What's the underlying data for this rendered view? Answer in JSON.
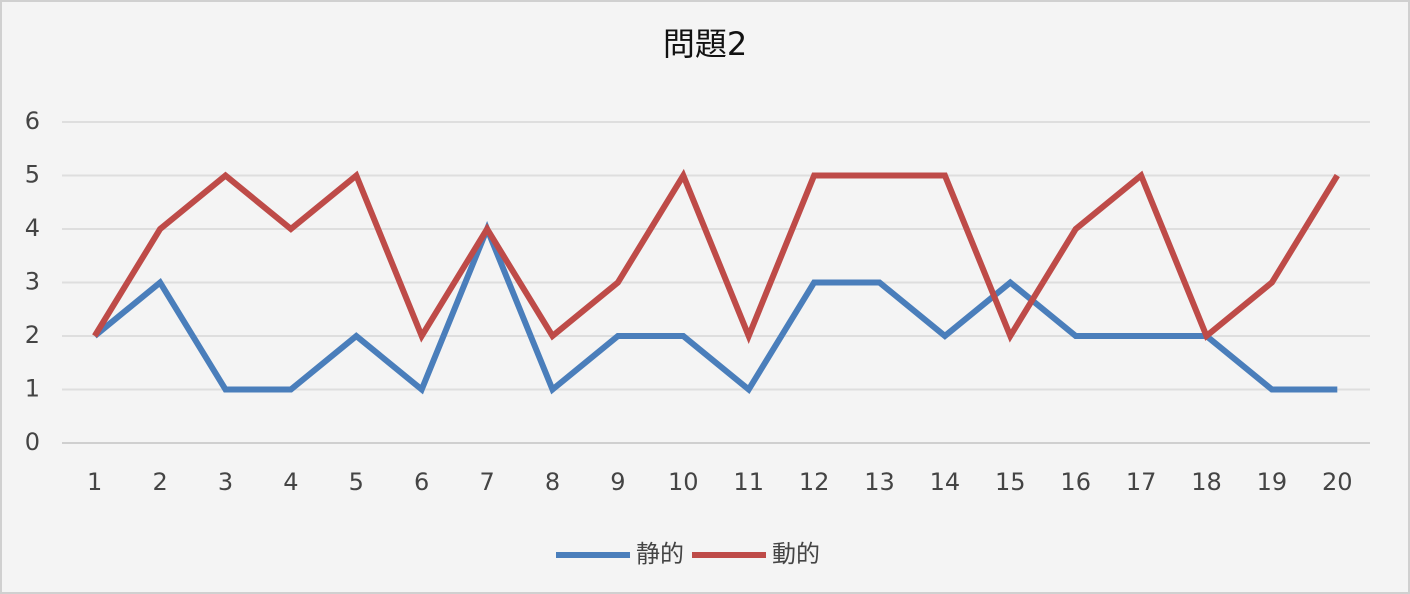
{
  "chart_data": {
    "type": "line",
    "title": "問題2",
    "categories": [
      "1",
      "2",
      "3",
      "4",
      "5",
      "6",
      "7",
      "8",
      "9",
      "10",
      "11",
      "12",
      "13",
      "14",
      "15",
      "16",
      "17",
      "18",
      "19",
      "20"
    ],
    "series": [
      {
        "name": "静的",
        "color": "#4a7ebb",
        "values": [
          2,
          3,
          1,
          1,
          2,
          1,
          4,
          1,
          2,
          2,
          1,
          3,
          3,
          2,
          3,
          2,
          2,
          2,
          1,
          1
        ]
      },
      {
        "name": "動的",
        "color": "#be4b48",
        "values": [
          2,
          4,
          5,
          4,
          5,
          2,
          4,
          2,
          3,
          5,
          2,
          5,
          5,
          5,
          2,
          4,
          5,
          2,
          3,
          5
        ]
      }
    ],
    "ylim": [
      0,
      6
    ],
    "yticks": [
      0,
      1,
      2,
      3,
      4,
      5,
      6
    ],
    "grid": true,
    "legend": "bottom"
  }
}
